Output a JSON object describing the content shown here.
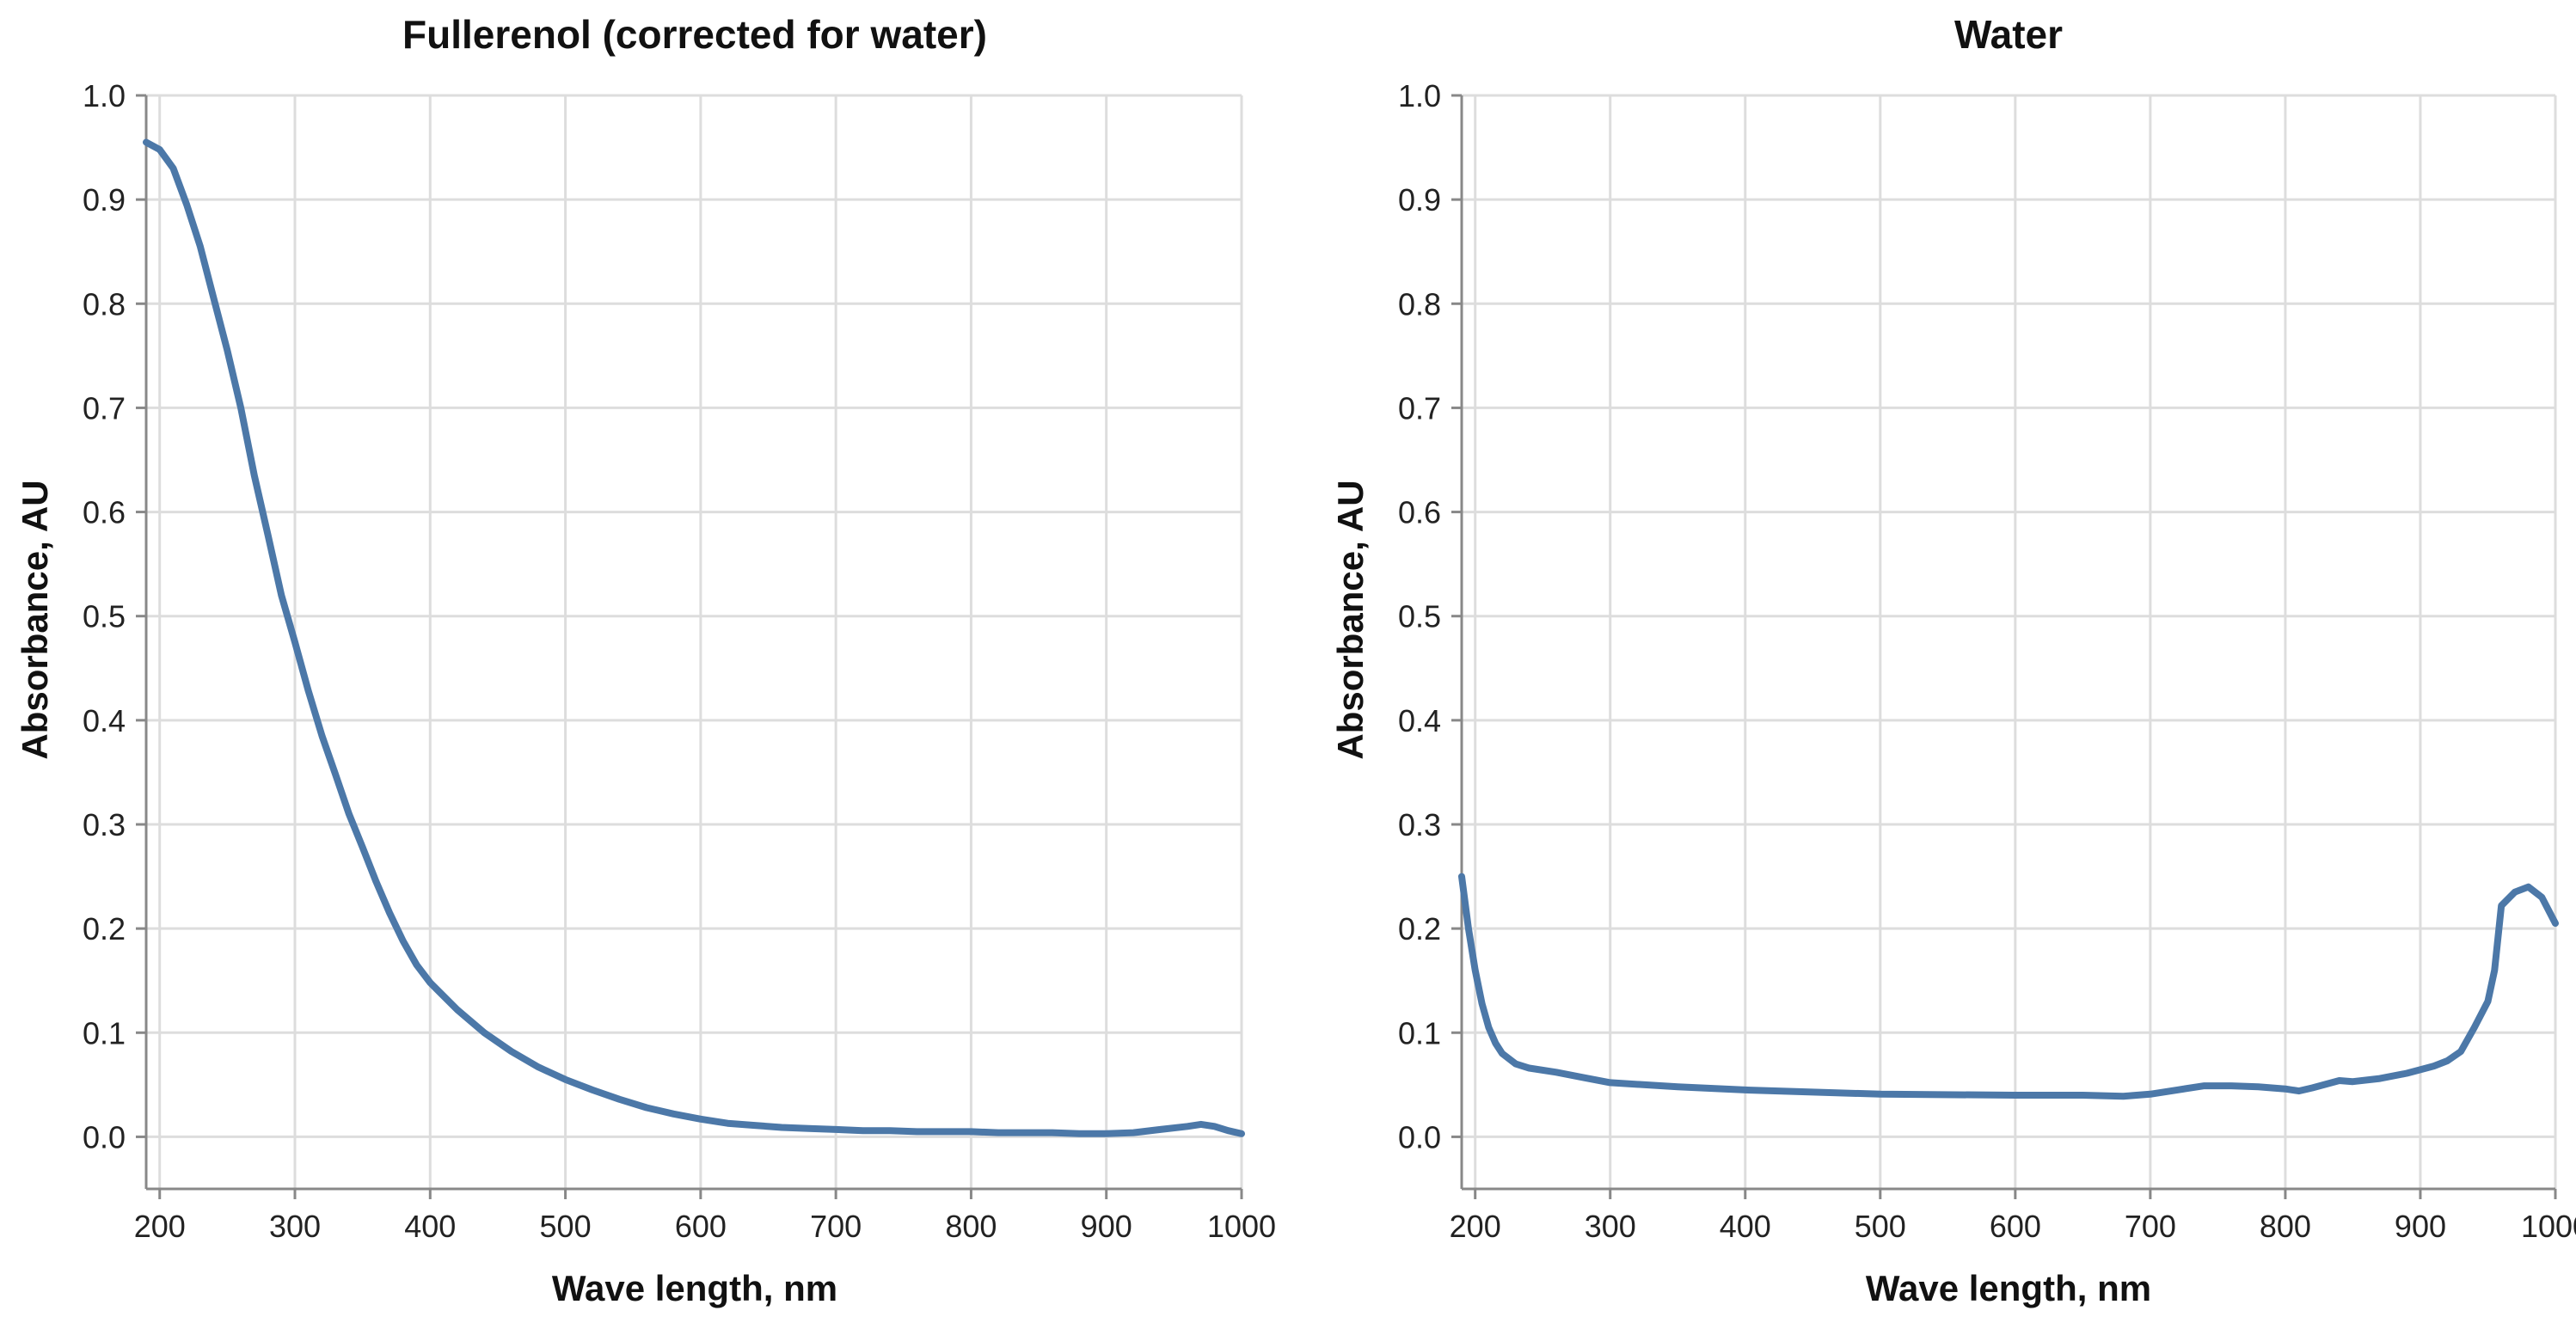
{
  "colors": {
    "series": "#4c78a8"
  },
  "chart_data": [
    {
      "type": "line",
      "title": "Fullerenol (corrected for water)",
      "xlabel": "Wave length, nm",
      "ylabel": "Absorbance, AU",
      "xlim": [
        190,
        1000
      ],
      "ylim": [
        -0.05,
        1.0
      ],
      "grid": true,
      "x_ticks": [
        200,
        300,
        400,
        500,
        600,
        700,
        800,
        900,
        1000
      ],
      "y_ticks": [
        0.0,
        0.1,
        0.2,
        0.3,
        0.4,
        0.5,
        0.6,
        0.7,
        0.8,
        0.9,
        1.0
      ],
      "x_tick_labels": [
        "200",
        "300",
        "400",
        "500",
        "600",
        "700",
        "800",
        "900",
        "1000"
      ],
      "y_tick_labels": [
        "0.0",
        "0.1",
        "0.2",
        "0.3",
        "0.4",
        "0.5",
        "0.6",
        "0.7",
        "0.8",
        "0.9",
        "1.0"
      ],
      "series": [
        {
          "name": "Fullerenol (corrected for water)",
          "x": [
            190,
            200,
            210,
            220,
            230,
            240,
            250,
            260,
            270,
            280,
            290,
            300,
            310,
            320,
            330,
            340,
            350,
            360,
            370,
            380,
            390,
            400,
            420,
            440,
            460,
            480,
            500,
            520,
            540,
            560,
            580,
            600,
            620,
            640,
            660,
            680,
            700,
            720,
            740,
            760,
            780,
            800,
            820,
            840,
            860,
            880,
            900,
            920,
            940,
            960,
            970,
            980,
            990,
            1000
          ],
          "y": [
            0.955,
            0.948,
            0.93,
            0.895,
            0.855,
            0.805,
            0.755,
            0.7,
            0.635,
            0.578,
            0.52,
            0.475,
            0.428,
            0.385,
            0.348,
            0.31,
            0.278,
            0.245,
            0.215,
            0.188,
            0.165,
            0.148,
            0.122,
            0.1,
            0.082,
            0.067,
            0.055,
            0.045,
            0.036,
            0.028,
            0.022,
            0.017,
            0.013,
            0.011,
            0.009,
            0.008,
            0.007,
            0.006,
            0.006,
            0.005,
            0.005,
            0.005,
            0.004,
            0.004,
            0.004,
            0.003,
            0.003,
            0.004,
            0.007,
            0.01,
            0.012,
            0.01,
            0.006,
            0.003
          ]
        }
      ]
    },
    {
      "type": "line",
      "title": "Water",
      "xlabel": "Wave length, nm",
      "ylabel": "Absorbance, AU",
      "xlim": [
        190,
        1000
      ],
      "ylim": [
        -0.05,
        1.0
      ],
      "grid": true,
      "x_ticks": [
        200,
        300,
        400,
        500,
        600,
        700,
        800,
        900,
        1000
      ],
      "y_ticks": [
        0.0,
        0.1,
        0.2,
        0.3,
        0.4,
        0.5,
        0.6,
        0.7,
        0.8,
        0.9,
        1.0
      ],
      "x_tick_labels": [
        "200",
        "300",
        "400",
        "500",
        "600",
        "700",
        "800",
        "900",
        "1000"
      ],
      "y_tick_labels": [
        "0.0",
        "0.1",
        "0.2",
        "0.3",
        "0.4",
        "0.5",
        "0.6",
        "0.7",
        "0.8",
        "0.9",
        "1.0"
      ],
      "series": [
        {
          "name": "Water",
          "x": [
            190,
            195,
            200,
            205,
            210,
            215,
            220,
            230,
            240,
            260,
            280,
            300,
            350,
            400,
            500,
            600,
            650,
            680,
            700,
            720,
            740,
            760,
            780,
            800,
            810,
            820,
            840,
            850,
            870,
            890,
            910,
            920,
            930,
            940,
            950,
            955,
            960,
            970,
            980,
            990,
            1000
          ],
          "y": [
            0.25,
            0.2,
            0.16,
            0.128,
            0.105,
            0.09,
            0.08,
            0.07,
            0.066,
            0.062,
            0.057,
            0.052,
            0.048,
            0.045,
            0.041,
            0.04,
            0.04,
            0.039,
            0.041,
            0.045,
            0.049,
            0.049,
            0.048,
            0.046,
            0.044,
            0.047,
            0.054,
            0.053,
            0.056,
            0.061,
            0.068,
            0.073,
            0.082,
            0.105,
            0.13,
            0.16,
            0.222,
            0.235,
            0.24,
            0.23,
            0.205
          ]
        }
      ]
    }
  ]
}
